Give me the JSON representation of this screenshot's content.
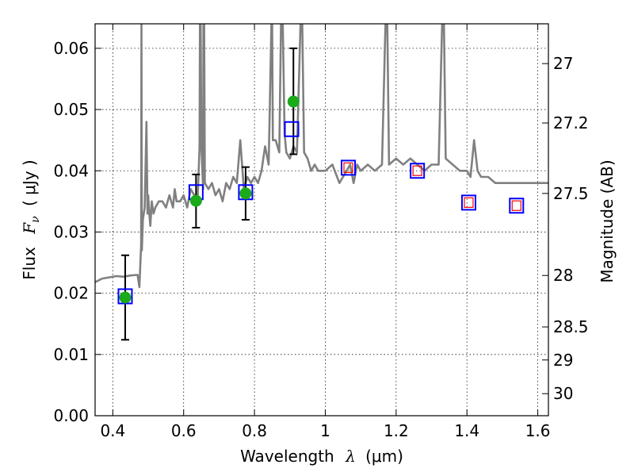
{
  "chart_data": {
    "type": "scatter",
    "title": "",
    "xlabel_text": "Wavelength",
    "xlabel_unit": "(μm)",
    "ylabel_text": "Flux",
    "ylabel_unit": "( μJy )",
    "y2label": "Magnitude (AB)",
    "xlim": [
      0.35,
      1.63
    ],
    "ylim": [
      0,
      0.064
    ],
    "grid": true,
    "xticks": [
      {
        "value": 0.4,
        "label": "0.4"
      },
      {
        "value": 0.6,
        "label": "0.6"
      },
      {
        "value": 0.8,
        "label": "0.8"
      },
      {
        "value": 1.0,
        "label": "1"
      },
      {
        "value": 1.2,
        "label": "1.2"
      },
      {
        "value": 1.4,
        "label": "1.4"
      },
      {
        "value": 1.6,
        "label": "1.6"
      }
    ],
    "yticks": [
      {
        "value": 0.0,
        "label": "0.00"
      },
      {
        "value": 0.01,
        "label": "0.01"
      },
      {
        "value": 0.02,
        "label": "0.02"
      },
      {
        "value": 0.03,
        "label": "0.03"
      },
      {
        "value": 0.04,
        "label": "0.04"
      },
      {
        "value": 0.05,
        "label": "0.05"
      },
      {
        "value": 0.06,
        "label": "0.06"
      }
    ],
    "y2ticks": [
      {
        "flux": 0.0575,
        "label": "27"
      },
      {
        "flux": 0.0478,
        "label": "27.2"
      },
      {
        "flux": 0.0363,
        "label": "27.5"
      },
      {
        "flux": 0.0229,
        "label": "28"
      },
      {
        "flux": 0.0145,
        "label": "28.5"
      },
      {
        "flux": 0.0091,
        "label": "29"
      },
      {
        "flux": 0.0036,
        "label": "30"
      }
    ],
    "series": [
      {
        "style": "gray-line",
        "color": "#808080",
        "x": [
          0.35,
          0.37,
          0.39,
          0.41,
          0.43,
          0.45,
          0.47,
          0.475,
          0.48,
          0.481,
          0.482,
          0.485,
          0.49,
          0.495,
          0.498,
          0.5,
          0.503,
          0.506,
          0.51,
          0.515,
          0.52,
          0.53,
          0.54,
          0.55,
          0.56,
          0.57,
          0.575,
          0.58,
          0.59,
          0.6,
          0.61,
          0.62,
          0.63,
          0.64,
          0.645,
          0.646,
          0.648,
          0.65,
          0.655,
          0.656,
          0.658,
          0.66,
          0.67,
          0.68,
          0.69,
          0.7,
          0.71,
          0.72,
          0.73,
          0.74,
          0.75,
          0.76,
          0.77,
          0.78,
          0.79,
          0.8,
          0.81,
          0.82,
          0.83,
          0.84,
          0.848,
          0.85,
          0.852,
          0.86,
          0.87,
          0.875,
          0.88,
          0.885,
          0.89,
          0.9,
          0.91,
          0.92,
          0.93,
          0.935,
          0.94,
          0.95,
          0.96,
          0.97,
          0.98,
          1.0,
          1.02,
          1.04,
          1.06,
          1.07,
          1.08,
          1.09,
          1.1,
          1.12,
          1.14,
          1.16,
          1.17,
          1.175,
          1.18,
          1.2,
          1.22,
          1.24,
          1.26,
          1.28,
          1.3,
          1.32,
          1.33,
          1.335,
          1.34,
          1.36,
          1.38,
          1.4,
          1.41,
          1.42,
          1.43,
          1.44,
          1.46,
          1.48,
          1.5,
          1.52,
          1.54,
          1.56,
          1.58,
          1.6,
          1.63
        ],
        "y": [
          0.0218,
          0.0224,
          0.0226,
          0.0228,
          0.0227,
          0.0229,
          0.023,
          0.021,
          0.028,
          0.064,
          0.027,
          0.032,
          0.034,
          0.048,
          0.033,
          0.036,
          0.033,
          0.031,
          0.035,
          0.033,
          0.034,
          0.035,
          0.035,
          0.034,
          0.036,
          0.034,
          0.037,
          0.035,
          0.035,
          0.036,
          0.034,
          0.037,
          0.036,
          0.036,
          0.044,
          0.064,
          0.064,
          0.044,
          0.037,
          0.064,
          0.064,
          0.038,
          0.037,
          0.038,
          0.036,
          0.037,
          0.035,
          0.038,
          0.037,
          0.039,
          0.038,
          0.045,
          0.037,
          0.039,
          0.038,
          0.039,
          0.038,
          0.04,
          0.044,
          0.041,
          0.064,
          0.064,
          0.045,
          0.045,
          0.043,
          0.064,
          0.064,
          0.046,
          0.043,
          0.042,
          0.044,
          0.043,
          0.064,
          0.064,
          0.043,
          0.042,
          0.04,
          0.041,
          0.04,
          0.04,
          0.041,
          0.038,
          0.04,
          0.041,
          0.038,
          0.041,
          0.04,
          0.041,
          0.04,
          0.041,
          0.064,
          0.064,
          0.041,
          0.042,
          0.041,
          0.042,
          0.041,
          0.04,
          0.041,
          0.041,
          0.064,
          0.064,
          0.042,
          0.041,
          0.04,
          0.04,
          0.039,
          0.045,
          0.04,
          0.039,
          0.039,
          0.038,
          0.038,
          0.038,
          0.038,
          0.038,
          0.038,
          0.038,
          0.038
        ]
      },
      {
        "style": "green-circle",
        "color": "#1aaa1a",
        "x": [
          0.435,
          0.635,
          0.775,
          0.91
        ],
        "y": [
          0.0193,
          0.0351,
          0.0363,
          0.0513
        ],
        "yerr_low": [
          0.0124,
          0.0307,
          0.032,
          0.0427
        ],
        "yerr_high": [
          0.0262,
          0.0394,
          0.0406,
          0.06
        ]
      },
      {
        "style": "blue-square",
        "color": "#0000ff",
        "x": [
          0.435,
          0.635,
          0.775,
          0.905,
          1.065,
          1.26,
          1.405,
          1.54
        ],
        "y": [
          0.0195,
          0.0365,
          0.0365,
          0.0468,
          0.0405,
          0.04,
          0.0348,
          0.0343
        ]
      },
      {
        "style": "red-square",
        "color": "#ff0000",
        "x": [
          1.065,
          1.26,
          1.405,
          1.54
        ],
        "y": [
          0.0405,
          0.04,
          0.0348,
          0.0343
        ]
      }
    ]
  }
}
